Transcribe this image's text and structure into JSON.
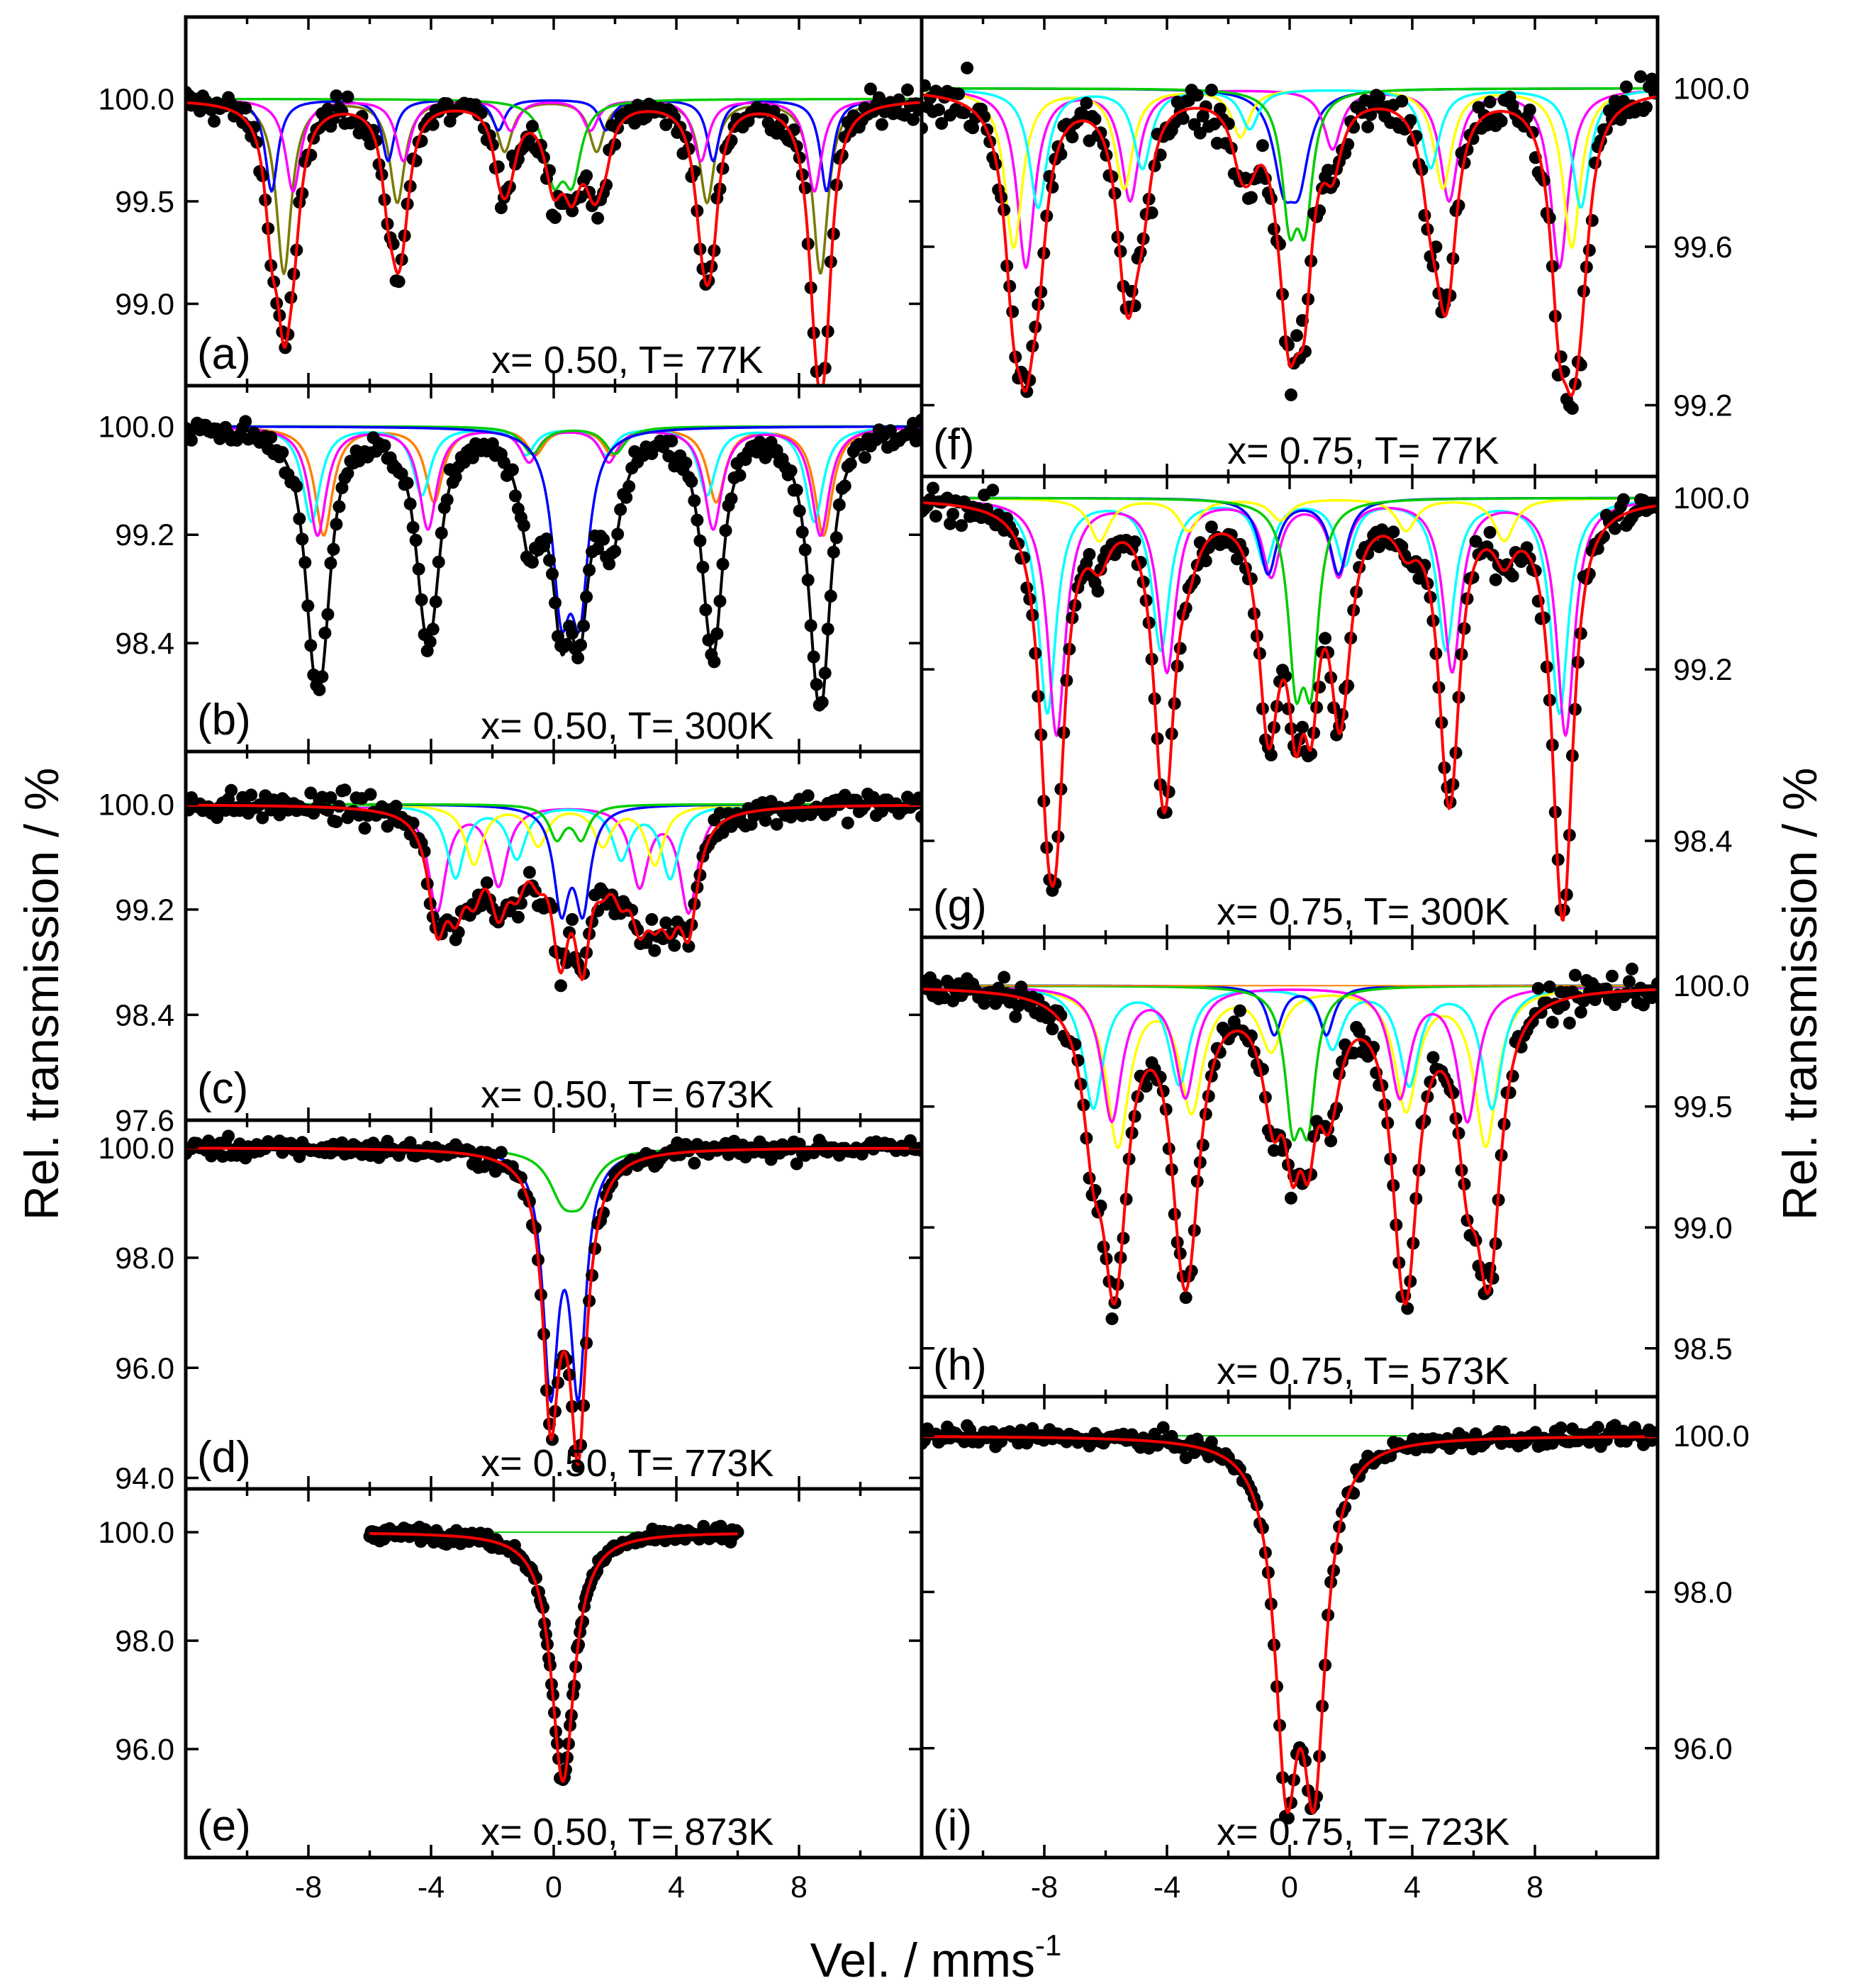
{
  "figure": {
    "ylabel_left": "Rel. transmission / %",
    "ylabel_right": "Rel. transmission / %",
    "xlabel_main": "Vel. / mms",
    "xlabel_sup": "-1"
  },
  "chart_data": [
    {
      "id": "a",
      "type": "scatter",
      "panel_label": "(a)",
      "condition": "x= 0.50, T= 77K",
      "ylim": [
        98.6,
        100.4
      ],
      "xlim": [
        -12,
        12
      ],
      "yticks": [
        "100.0",
        "99.5",
        "99.0"
      ],
      "ytick_values": [
        100.0,
        99.5,
        99.0
      ],
      "noise": 0.1,
      "components": [
        {
          "color": "#7a7a00",
          "lines": [
            [
              -8.8,
              0.85,
              0.3
            ],
            [
              -5.1,
              0.5,
              0.3
            ],
            [
              -1.6,
              0.25,
              0.3
            ],
            [
              1.4,
              0.25,
              0.3
            ],
            [
              5.0,
              0.5,
              0.3
            ],
            [
              8.7,
              0.85,
              0.3
            ]
          ]
        },
        {
          "color": "#0000ff",
          "lines": [
            [
              -9.2,
              0.45,
              0.25
            ],
            [
              -5.4,
              0.3,
              0.25
            ],
            [
              -1.8,
              0.15,
              0.25
            ],
            [
              1.7,
              0.15,
              0.25
            ],
            [
              5.2,
              0.3,
              0.25
            ],
            [
              8.9,
              0.45,
              0.25
            ]
          ]
        },
        {
          "color": "#ff00ff",
          "lines": [
            [
              -8.5,
              0.45,
              0.3
            ],
            [
              -4.9,
              0.3,
              0.3
            ],
            [
              -1.4,
              0.15,
              0.3
            ],
            [
              1.2,
              0.15,
              0.3
            ],
            [
              4.8,
              0.3,
              0.3
            ],
            [
              8.5,
              0.45,
              0.3
            ]
          ]
        },
        {
          "color": "#00cc00",
          "lines": [
            [
              0.0,
              0.35,
              0.35
            ],
            [
              0.6,
              0.35,
              0.35
            ]
          ]
        }
      ],
      "envelope_color": "#ff0000"
    },
    {
      "id": "b",
      "type": "scatter",
      "panel_label": "(b)",
      "condition": "x= 0.50, T= 300K",
      "ylim": [
        97.6,
        100.3
      ],
      "xlim": [
        -12,
        12
      ],
      "yticks": [
        "100.0",
        "99.2",
        "98.4"
      ],
      "ytick_values": [
        100.0,
        99.2,
        98.4
      ],
      "noise": 0.12,
      "components": [
        {
          "color": "#ff8000",
          "lines": [
            [
              -7.5,
              0.8,
              0.35
            ],
            [
              -3.9,
              0.55,
              0.35
            ],
            [
              -0.6,
              0.2,
              0.35
            ],
            [
              1.9,
              0.2,
              0.35
            ],
            [
              5.3,
              0.55,
              0.35
            ],
            [
              8.8,
              0.8,
              0.35
            ]
          ]
        },
        {
          "color": "#00ffff",
          "lines": [
            [
              -7.9,
              0.7,
              0.35
            ],
            [
              -4.3,
              0.5,
              0.35
            ],
            [
              -0.9,
              0.2,
              0.35
            ],
            [
              1.7,
              0.2,
              0.35
            ],
            [
              5.0,
              0.5,
              0.35
            ],
            [
              8.5,
              0.7,
              0.35
            ]
          ]
        },
        {
          "color": "#ff00ff",
          "lines": [
            [
              -7.7,
              0.8,
              0.35
            ],
            [
              -4.1,
              0.75,
              0.35
            ],
            [
              -0.8,
              0.25,
              0.35
            ],
            [
              1.8,
              0.25,
              0.35
            ],
            [
              5.2,
              0.75,
              0.35
            ],
            [
              8.7,
              0.8,
              0.35
            ]
          ]
        },
        {
          "color": "#00cc00",
          "lines": [
            [
              -0.7,
              0.2,
              0.4
            ],
            [
              2.0,
              0.2,
              0.4
            ]
          ]
        },
        {
          "color": "#0000ff",
          "lines": [
            [
              0.25,
              1.2,
              0.35
            ],
            [
              0.85,
              1.2,
              0.35
            ]
          ]
        }
      ],
      "envelope_color": "#000000"
    },
    {
      "id": "c",
      "type": "scatter",
      "panel_label": "(c)",
      "condition": "x= 0.50, T= 673K",
      "ylim": [
        97.6,
        100.4
      ],
      "xlim": [
        -12,
        12
      ],
      "yticks": [
        "100.0",
        "99.2",
        "98.4",
        "97.6"
      ],
      "ytick_values": [
        100.0,
        99.2,
        98.4,
        97.6
      ],
      "noise": 0.14,
      "components": [
        {
          "color": "#ff00ff",
          "lines": [
            [
              -3.8,
              0.8,
              0.35
            ],
            [
              -1.8,
              0.6,
              0.35
            ],
            [
              2.8,
              0.6,
              0.35
            ],
            [
              4.4,
              0.8,
              0.35
            ]
          ]
        },
        {
          "color": "#00ffff",
          "lines": [
            [
              -3.2,
              0.55,
              0.35
            ],
            [
              -1.2,
              0.4,
              0.35
            ],
            [
              2.2,
              0.4,
              0.35
            ],
            [
              3.8,
              0.55,
              0.35
            ]
          ]
        },
        {
          "color": "#ffff00",
          "lines": [
            [
              -2.6,
              0.45,
              0.35
            ],
            [
              -0.5,
              0.3,
              0.35
            ],
            [
              1.6,
              0.3,
              0.35
            ],
            [
              3.3,
              0.45,
              0.35
            ]
          ]
        },
        {
          "color": "#0000ff",
          "lines": [
            [
              0.25,
              0.75,
              0.3
            ],
            [
              0.95,
              0.75,
              0.3
            ]
          ]
        },
        {
          "color": "#00cc00",
          "lines": [
            [
              0.1,
              0.25,
              0.3
            ],
            [
              0.9,
              0.25,
              0.3
            ]
          ]
        }
      ],
      "envelope_color": "#ff0000"
    },
    {
      "id": "d",
      "type": "scatter",
      "panel_label": "(d)",
      "condition": "x= 0.50, T= 773K",
      "ylim": [
        93.8,
        100.5
      ],
      "xlim": [
        -12,
        12
      ],
      "yticks": [
        "100.0",
        "98.0",
        "96.0",
        "94.0"
      ],
      "ytick_values": [
        100.0,
        98.0,
        96.0,
        94.0
      ],
      "noise": 0.22,
      "components": [
        {
          "color": "#0000ff",
          "lines": [
            [
              -0.1,
              4.2,
              0.3
            ],
            [
              0.8,
              4.2,
              0.3
            ]
          ]
        },
        {
          "color": "#00cc00",
          "lines": [
            [
              0.3,
              0.75,
              0.55
            ],
            [
              0.9,
              0.75,
              0.55
            ]
          ]
        }
      ],
      "envelope_color": "#ff0000"
    },
    {
      "id": "e",
      "type": "scatter",
      "panel_label": "(e)",
      "condition": "x= 0.50, T= 873K",
      "ylim": [
        94.0,
        100.8
      ],
      "xlim": [
        -12,
        12
      ],
      "yticks": [
        "100.0",
        "98.0",
        "96.0"
      ],
      "ytick_values": [
        100.0,
        98.0,
        96.0
      ],
      "xdata_range": [
        -6,
        6
      ],
      "noise": 0.15,
      "components": [
        {
          "color": "#ff0000",
          "lines": [
            [
              0.3,
              4.6,
              0.45
            ]
          ]
        }
      ],
      "envelope_color": "#ff0000",
      "baseline_color": "#00cc00"
    },
    {
      "id": "f",
      "type": "scatter",
      "panel_label": "(f)",
      "condition": "x= 0.75, T= 77K",
      "ylim": [
        99.02,
        100.18
      ],
      "xlim": [
        -12,
        12
      ],
      "yticks": [
        "100.0",
        "99.6",
        "99.2"
      ],
      "ytick_values": [
        100.0,
        99.6,
        99.2
      ],
      "noise": 0.08,
      "components": [
        {
          "color": "#0000ff",
          "lines": [
            [
              -0.2,
              0.2,
              0.4
            ],
            [
              0.3,
              0.2,
              0.4
            ]
          ]
        },
        {
          "color": "#ff00ff",
          "lines": [
            [
              -8.6,
              0.45,
              0.35
            ],
            [
              -5.2,
              0.28,
              0.35
            ],
            [
              1.4,
              0.15,
              0.35
            ],
            [
              5.2,
              0.28,
              0.35
            ],
            [
              8.8,
              0.45,
              0.35
            ]
          ]
        },
        {
          "color": "#ffff00",
          "lines": [
            [
              -9.0,
              0.4,
              0.35
            ],
            [
              -5.4,
              0.25,
              0.35
            ],
            [
              -1.6,
              0.12,
              0.35
            ],
            [
              5.0,
              0.25,
              0.35
            ],
            [
              9.2,
              0.4,
              0.35
            ]
          ]
        },
        {
          "color": "#00ffff",
          "lines": [
            [
              -8.2,
              0.3,
              0.35
            ],
            [
              -4.8,
              0.2,
              0.35
            ],
            [
              -1.3,
              0.1,
              0.35
            ],
            [
              4.6,
              0.2,
              0.35
            ],
            [
              9.5,
              0.3,
              0.35
            ]
          ]
        },
        {
          "color": "#00cc00",
          "lines": [
            [
              0.0,
              0.3,
              0.3
            ],
            [
              0.5,
              0.3,
              0.3
            ]
          ]
        }
      ],
      "envelope_color": "#ff0000"
    },
    {
      "id": "g",
      "type": "scatter",
      "panel_label": "(g)",
      "condition": "x= 0.75, T= 300K",
      "ylim": [
        97.95,
        100.1
      ],
      "xlim": [
        -12,
        12
      ],
      "yticks": [
        "100.0",
        "99.2",
        "98.4"
      ],
      "ytick_values": [
        100.0,
        99.2,
        98.4
      ],
      "noise": 0.1,
      "components": [
        {
          "color": "#00ffff",
          "lines": [
            [
              -7.9,
              1.0,
              0.35
            ],
            [
              -4.2,
              0.7,
              0.35
            ],
            [
              -0.8,
              0.3,
              0.35
            ],
            [
              1.8,
              0.3,
              0.35
            ],
            [
              5.1,
              0.7,
              0.35
            ],
            [
              8.8,
              1.0,
              0.35
            ]
          ]
        },
        {
          "color": "#ff00ff",
          "lines": [
            [
              -7.6,
              1.1,
              0.35
            ],
            [
              -4.0,
              0.8,
              0.35
            ],
            [
              -0.6,
              0.35,
              0.35
            ],
            [
              1.6,
              0.35,
              0.35
            ],
            [
              5.3,
              0.8,
              0.35
            ],
            [
              9.0,
              1.1,
              0.35
            ]
          ]
        },
        {
          "color": "#ffff00",
          "lines": [
            [
              -6.2,
              0.2,
              0.4
            ],
            [
              -3.3,
              0.15,
              0.4
            ],
            [
              -0.3,
              0.1,
              0.4
            ],
            [
              3.8,
              0.15,
              0.4
            ],
            [
              7.0,
              0.2,
              0.4
            ]
          ]
        },
        {
          "color": "#0000ff",
          "lines": [
            [
              -0.7,
              0.35,
              0.35
            ],
            [
              1.6,
              0.35,
              0.35
            ]
          ]
        },
        {
          "color": "#00cc00",
          "lines": [
            [
              0.2,
              0.75,
              0.3
            ],
            [
              0.7,
              0.75,
              0.3
            ]
          ]
        }
      ],
      "envelope_color": "#ff0000"
    },
    {
      "id": "h",
      "type": "scatter",
      "panel_label": "(h)",
      "condition": "x= 0.75, T= 573K",
      "ylim": [
        98.3,
        100.2
      ],
      "xlim": [
        -12,
        12
      ],
      "yticks": [
        "100.0",
        "99.5",
        "99.0",
        "98.5"
      ],
      "ytick_values": [
        100.0,
        99.5,
        99.0,
        98.5
      ],
      "noise": 0.1,
      "components": [
        {
          "color": "#ffff00",
          "lines": [
            [
              -5.6,
              0.65,
              0.45
            ],
            [
              -3.2,
              0.5,
              0.45
            ],
            [
              -0.6,
              0.25,
              0.45
            ],
            [
              3.8,
              0.5,
              0.45
            ],
            [
              6.4,
              0.65,
              0.45
            ]
          ]
        },
        {
          "color": "#00ffff",
          "lines": [
            [
              -6.4,
              0.5,
              0.4
            ],
            [
              -3.6,
              0.4,
              0.4
            ],
            [
              1.4,
              0.25,
              0.4
            ],
            [
              3.9,
              0.4,
              0.4
            ],
            [
              6.6,
              0.5,
              0.4
            ]
          ]
        },
        {
          "color": "#ff00ff",
          "lines": [
            [
              -5.8,
              0.55,
              0.4
            ],
            [
              -3.4,
              0.45,
              0.4
            ],
            [
              3.6,
              0.45,
              0.4
            ],
            [
              5.8,
              0.55,
              0.4
            ]
          ]
        },
        {
          "color": "#0000ff",
          "lines": [
            [
              -0.5,
              0.2,
              0.3
            ],
            [
              1.2,
              0.2,
              0.3
            ]
          ]
        },
        {
          "color": "#00cc00",
          "lines": [
            [
              0.1,
              0.5,
              0.3
            ],
            [
              0.6,
              0.5,
              0.3
            ]
          ]
        }
      ],
      "envelope_color": "#ff0000",
      "baseline_color": "#ff8000"
    },
    {
      "id": "i",
      "type": "scatter",
      "panel_label": "(i)",
      "condition": "x= 0.75, T= 723K",
      "ylim": [
        94.6,
        100.5
      ],
      "xlim": [
        -12,
        12
      ],
      "yticks": [
        "100.0",
        "98.0",
        "96.0"
      ],
      "ytick_values": [
        100.0,
        98.0,
        96.0
      ],
      "noise": 0.15,
      "components": [
        {
          "color": "#ff0000",
          "lines": [
            [
              -0.1,
              4.0,
              0.45
            ],
            [
              0.8,
              4.0,
              0.45
            ]
          ]
        }
      ],
      "envelope_color": "#ff0000",
      "baseline_color": "#00cc00"
    }
  ],
  "x_axis": {
    "ticks": [
      "-8",
      "-4",
      "0",
      "4",
      "8"
    ],
    "tick_values": [
      -8,
      -4,
      0,
      4,
      8
    ]
  }
}
